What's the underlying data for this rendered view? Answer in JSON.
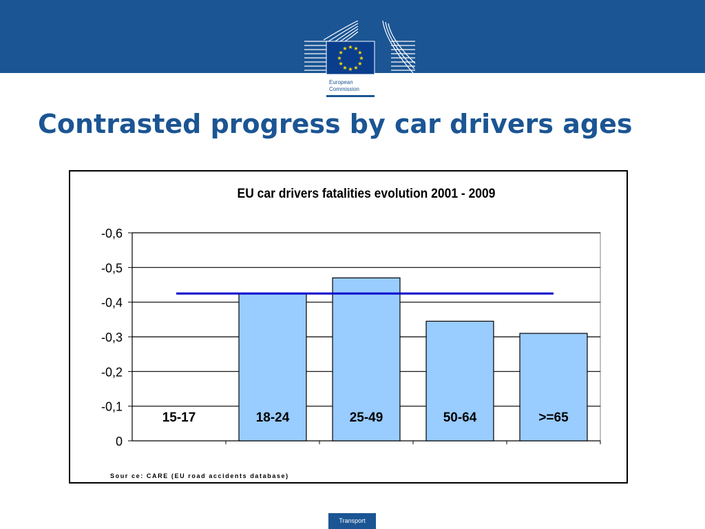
{
  "header": {
    "logo_text_line1": "European",
    "logo_text_line2": "Commission",
    "brand_color": "#1b5593"
  },
  "slide": {
    "title": "Contrasted progress by car drivers ages"
  },
  "footer": {
    "tab_label": "Transport"
  },
  "chart_data": {
    "type": "bar",
    "title": "EU car drivers  fatalities  evolution 2001 - 2009",
    "categories": [
      "15-17",
      "18-24",
      "25-49",
      "50-64",
      ">=65"
    ],
    "values": [
      0,
      -0.425,
      -0.47,
      -0.345,
      -0.31
    ],
    "reference_line": -0.425,
    "ylim": [
      0,
      -0.6
    ],
    "yticks": [
      0,
      -0.1,
      -0.2,
      -0.3,
      -0.4,
      -0.5,
      -0.6
    ],
    "ytick_labels": [
      "0",
      "-0,1",
      "-0,2",
      "-0,3",
      "-0,4",
      "-0,5",
      "-0,6"
    ],
    "xlabel": "",
    "ylabel": "",
    "grid": true,
    "legend": "none",
    "bar_color": "#99ccff",
    "line_color": "#0000cc",
    "source_note": "Sour ce: CARE (EU road accidents database)"
  }
}
